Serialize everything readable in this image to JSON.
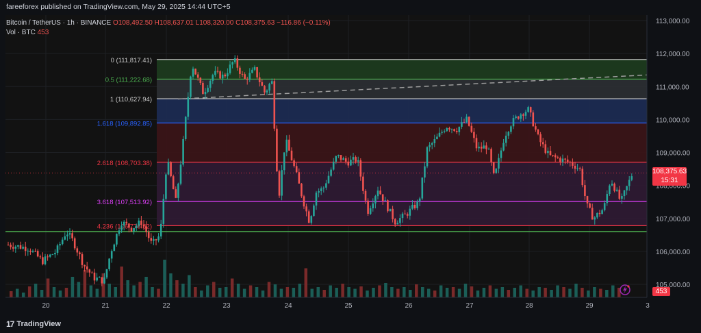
{
  "header": {
    "published": "fareeforex published on TradingView.com, May 29, 2025 14:44 UTC+5"
  },
  "symbol": {
    "name": "Bitcoin / TetherUS · 1h · BINANCE",
    "open": "O108,492.50",
    "high": "H108,637.01",
    "low": "L108,320.00",
    "close": "C108,375.63",
    "change": "−116.86 (−0.11%)"
  },
  "volume": {
    "label": "Vol · BTC",
    "value": "453"
  },
  "price_tag": {
    "price": "108,375.63",
    "countdown": "15:31"
  },
  "volume_tag": "453",
  "footer": {
    "logo": "17",
    "brand": "TradingView"
  },
  "colors": {
    "up": "#26a69a",
    "down": "#ef5350",
    "background": "#0f1115",
    "zone_green": "#1e3b1f",
    "zone_gray": "#2b2e33",
    "zone_blue": "#1c2b52",
    "zone_red": "#3a1518",
    "zone_purple": "#2e1a33"
  },
  "chart_data": {
    "type": "candlestick",
    "y_axis": {
      "min": 104600,
      "max": 113000,
      "ticks": [
        "113,000.00",
        "112,000.00",
        "111,000.00",
        "110,000.00",
        "109,000.00",
        "108,000.00",
        "107,000.00",
        "106,000.00",
        "105,000.00"
      ],
      "tick_values": [
        113000,
        112000,
        111000,
        110000,
        109000,
        108000,
        107000,
        106000,
        105000
      ]
    },
    "x_axis": {
      "ticks": [
        "20",
        "21",
        "22",
        "23",
        "24",
        "25",
        "26",
        "27",
        "28",
        "29",
        "3"
      ]
    },
    "fib_levels": [
      {
        "label": "0 (111,817.41)",
        "value": 111817.41,
        "color": "#c9c9c9"
      },
      {
        "label": "0.5 (111,222.68)",
        "value": 111222.68,
        "color": "#4caf50"
      },
      {
        "label": "1 (110,627.94)",
        "value": 110627.94,
        "color": "#c9c9c9"
      },
      {
        "label": "1.618 (109,892.85)",
        "value": 109892.85,
        "color": "#2962ff"
      },
      {
        "label": "2.618 (108,703.38)",
        "value": 108703.38,
        "color": "#f23645"
      },
      {
        "label": "3.618 (107,513.92)",
        "value": 107513.92,
        "color": "#e040fb"
      },
      {
        "label": "4.236 (106,778.82)",
        "value": 106778.82,
        "color": "#f23645"
      }
    ],
    "support_line": {
      "value": 106600,
      "color": "#4caf50"
    },
    "trend_line": {
      "from": 110620,
      "to": 111350,
      "color": "#9e9e9e"
    },
    "last_price": 108375.63,
    "price_path": [
      [
        0,
        106200
      ],
      [
        30,
        106100
      ],
      [
        50,
        105700
      ],
      [
        70,
        106000
      ],
      [
        85,
        106600
      ],
      [
        95,
        106300
      ],
      [
        110,
        105600
      ],
      [
        125,
        105200
      ],
      [
        140,
        105100
      ],
      [
        150,
        106000
      ],
      [
        165,
        106900
      ],
      [
        180,
        106700
      ],
      [
        195,
        106900
      ],
      [
        210,
        106200
      ],
      [
        222,
        106500
      ],
      [
        232,
        108800
      ],
      [
        245,
        107500
      ],
      [
        255,
        109200
      ],
      [
        268,
        111700
      ],
      [
        285,
        110800
      ],
      [
        300,
        111400
      ],
      [
        315,
        111300
      ],
      [
        330,
        111800
      ],
      [
        345,
        111200
      ],
      [
        360,
        111500
      ],
      [
        375,
        110800
      ],
      [
        385,
        111200
      ],
      [
        395,
        107600
      ],
      [
        405,
        109400
      ],
      [
        420,
        108400
      ],
      [
        430,
        107600
      ],
      [
        440,
        106900
      ],
      [
        450,
        107800
      ],
      [
        460,
        107900
      ],
      [
        470,
        108400
      ],
      [
        480,
        108900
      ],
      [
        495,
        108700
      ],
      [
        510,
        108800
      ],
      [
        525,
        107200
      ],
      [
        540,
        107900
      ],
      [
        555,
        107300
      ],
      [
        565,
        106900
      ],
      [
        580,
        107100
      ],
      [
        600,
        107500
      ],
      [
        612,
        109100
      ],
      [
        625,
        109400
      ],
      [
        640,
        109800
      ],
      [
        655,
        109700
      ],
      [
        670,
        110000
      ],
      [
        685,
        109100
      ],
      [
        700,
        109200
      ],
      [
        710,
        108200
      ],
      [
        725,
        109500
      ],
      [
        735,
        109900
      ],
      [
        750,
        110200
      ],
      [
        760,
        110300
      ],
      [
        775,
        109400
      ],
      [
        790,
        108900
      ],
      [
        805,
        108800
      ],
      [
        820,
        108700
      ],
      [
        835,
        108500
      ],
      [
        845,
        107400
      ],
      [
        855,
        107000
      ],
      [
        870,
        107300
      ],
      [
        880,
        108200
      ],
      [
        895,
        107500
      ],
      [
        912,
        108376
      ]
    ],
    "volume_bars": [
      18,
      25,
      14,
      32,
      40,
      22,
      55,
      30,
      20,
      28,
      60,
      45,
      80,
      35,
      25,
      70,
      40,
      30,
      90,
      50,
      35,
      45,
      60,
      30,
      25,
      110,
      70,
      50,
      40,
      65,
      30,
      20,
      35,
      45,
      28,
      30,
      55,
      40,
      25,
      35,
      30,
      20,
      45,
      38,
      25,
      30,
      28,
      40,
      85,
      25,
      30,
      22,
      35,
      28,
      40,
      30,
      25,
      32,
      20,
      28,
      35,
      42,
      30,
      25,
      30,
      22,
      38,
      30,
      25,
      20,
      35,
      28,
      30,
      25,
      40,
      32,
      20,
      28,
      35,
      25,
      30,
      22,
      28,
      35,
      25,
      20,
      30,
      28,
      22,
      35,
      30,
      25,
      40,
      28,
      20,
      30,
      25,
      22,
      35,
      28
    ]
  }
}
